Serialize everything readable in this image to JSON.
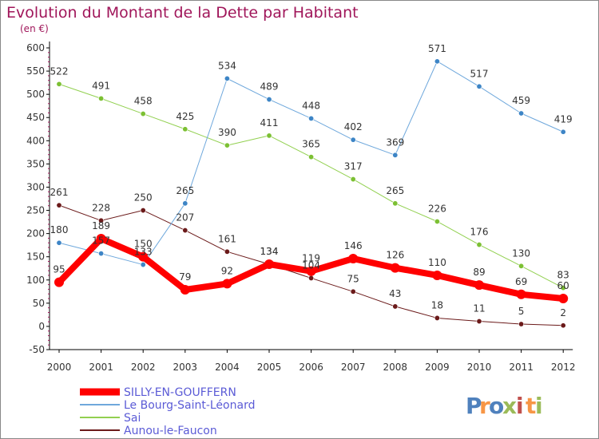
{
  "header": {
    "title": "Evolution du Montant de la Dette par Habitant",
    "unit": "(en €)"
  },
  "brand": {
    "letters": [
      "P",
      "r",
      "o",
      "x",
      "i",
      "t",
      "i"
    ],
    "letter_colors": [
      "#4f81bd",
      "#f79646",
      "#4f81bd",
      "#9bbb59",
      "#c0504d",
      "#f79646",
      "#9bbb59"
    ]
  },
  "colors": {
    "title": "#a0165a",
    "axis": "#000000",
    "grid": "#dddddd",
    "label": "#333333"
  },
  "chart_data": {
    "type": "line",
    "x": [
      "2000",
      "2001",
      "2002",
      "2003",
      "2004",
      "2005",
      "2006",
      "2007",
      "2008",
      "2009",
      "2010",
      "2011",
      "2012"
    ],
    "ylim": [
      -50,
      600
    ],
    "yticks": [
      -50,
      0,
      50,
      100,
      150,
      200,
      250,
      300,
      350,
      400,
      450,
      500,
      550,
      600
    ],
    "grid": false,
    "legend_position": "bottom-left",
    "series": [
      {
        "name": "Aunou-le-Faucon",
        "color": "#6b1a1a",
        "marker_color": "#6b1a1a",
        "width": 1,
        "values": [
          261,
          228,
          250,
          207,
          161,
          134,
          104,
          75,
          43,
          18,
          11,
          5,
          2
        ]
      },
      {
        "name": "Sai",
        "color": "#92d050",
        "marker_color": "#7cc033",
        "width": 1,
        "values": [
          522,
          491,
          458,
          425,
          390,
          411,
          365,
          317,
          265,
          226,
          176,
          130,
          83
        ]
      },
      {
        "name": "Le Bourg-Saint-Léonard",
        "color": "#6fa8dc",
        "marker_color": "#3d85c6",
        "width": 1,
        "values": [
          180,
          157,
          133,
          265,
          534,
          489,
          448,
          402,
          369,
          571,
          517,
          459,
          419
        ]
      },
      {
        "name": "SILLY-EN-GOUFFERN",
        "color": "#ff0000",
        "marker_color": "#ff0000",
        "width": 8,
        "values": [
          95,
          189,
          150,
          79,
          92,
          134,
          119,
          146,
          126,
          110,
          89,
          69,
          60
        ]
      }
    ]
  }
}
